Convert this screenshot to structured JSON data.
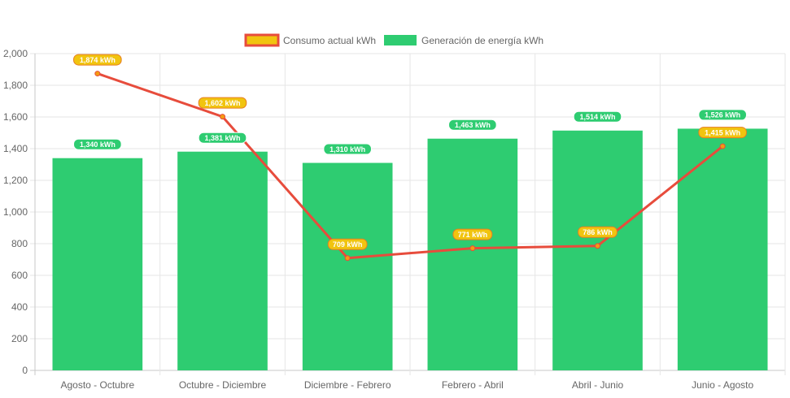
{
  "chart_data": {
    "type": "bar",
    "categories": [
      "Agosto - Octubre",
      "Octubre - Diciembre",
      "Diciembre - Febrero",
      "Febrero - Abril",
      "Abril - Junio",
      "Junio - Agosto"
    ],
    "series": [
      {
        "name": "Consumo actual kWh",
        "type": "line",
        "values": [
          1874,
          1602,
          709,
          771,
          786,
          1415
        ],
        "data_labels": [
          "1,874 kWh",
          "1,602 kWh",
          "709 kWh",
          "771 kWh",
          "786 kWh",
          "1,415 kWh"
        ],
        "color": "#e74c3c",
        "label_color": "#f1c40f"
      },
      {
        "name": "Generación de energía kWh",
        "type": "bar",
        "values": [
          1340,
          1381,
          1310,
          1463,
          1514,
          1526
        ],
        "data_labels": [
          "1,340 kWh",
          "1,381 kWh",
          "1,310 kWh",
          "1,463 kWh",
          "1,514 kWh",
          "1,526 kWh"
        ],
        "color": "#2ecc71"
      }
    ],
    "y_ticks": [
      "0",
      "200",
      "400",
      "600",
      "800",
      "1,000",
      "1,200",
      "1,400",
      "1,600",
      "1,800",
      "2,000"
    ],
    "ylim": [
      0,
      2000
    ],
    "grid": true,
    "legend_position": "top-center"
  }
}
